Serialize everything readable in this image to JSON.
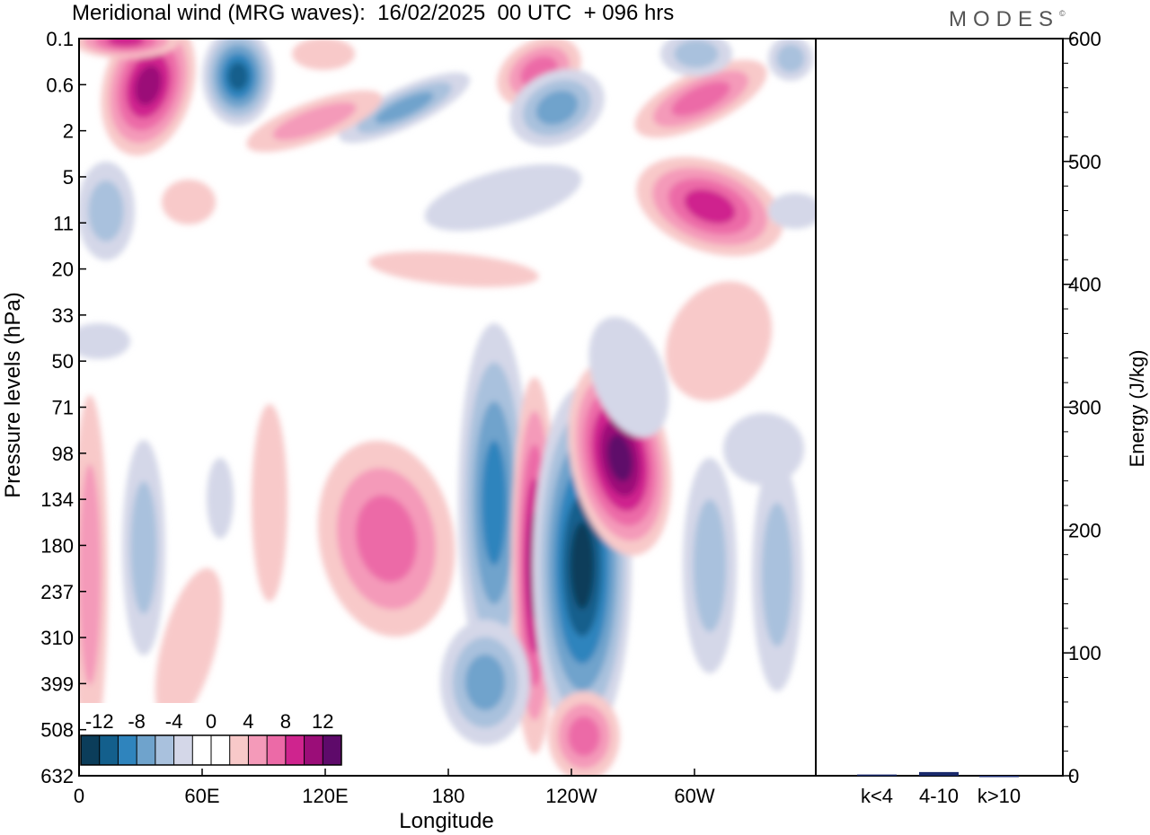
{
  "header": {
    "title": "Meridional wind (MRG waves):  16/02/2025  00 UTC  + 096 hrs",
    "brand": "MODES"
  },
  "chart_data": [
    {
      "type": "heatmap",
      "xlabel": "Longitude",
      "ylabel": "Pressure levels (hPa)",
      "x_ticks": [
        "0",
        "60E",
        "120E",
        "180",
        "120W",
        "60W"
      ],
      "y_ticks": [
        "0.1",
        "0.6",
        "2",
        "5",
        "11",
        "20",
        "33",
        "50",
        "71",
        "98",
        "134",
        "180",
        "237",
        "310",
        "399",
        "508",
        "632"
      ],
      "y_scale": "log (pressure levels, top = 0.1 hPa)",
      "colorbar": {
        "labels": [
          "-12",
          "-8",
          "-4",
          "0",
          "4",
          "8",
          "12"
        ],
        "colors": [
          "#0b3d5a",
          "#135f8c",
          "#2f84bd",
          "#6fa3cc",
          "#a9c1dd",
          "#d4d7e8",
          "#ffffff",
          "#ffffff",
          "#f8c9c9",
          "#f49ab9",
          "#ec6aa7",
          "#cf248e",
          "#9b0d78",
          "#5e0a6a"
        ]
      }
    },
    {
      "type": "bar",
      "ylabel": "Energy (J/kg)",
      "categories": [
        "k<4",
        "4-10",
        "k>10"
      ],
      "values": [
        1,
        3,
        0
      ],
      "ylim": [
        0,
        600
      ],
      "y_ticks": [
        "0",
        "100",
        "200",
        "300",
        "400",
        "500",
        "600"
      ],
      "bar_color": "#1a2a6c"
    }
  ]
}
